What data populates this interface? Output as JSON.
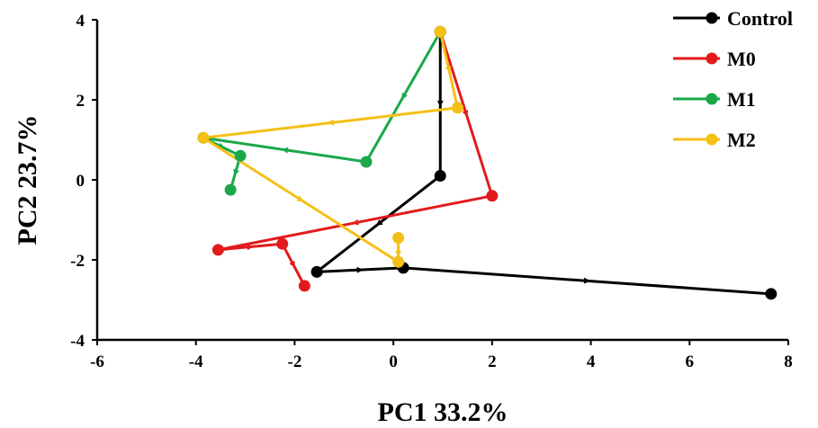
{
  "chart_data": {
    "type": "scatter",
    "xlabel": "PC1 33.2%",
    "ylabel": "PC2 23.7%",
    "xlim": [
      -6,
      8
    ],
    "ylim": [
      -4,
      4
    ],
    "xticks": [
      -6,
      -4,
      -2,
      0,
      2,
      4,
      6,
      8
    ],
    "yticks": [
      -4,
      -2,
      0,
      2,
      4
    ],
    "x_tick_labels": [
      "-6",
      "-4",
      "-2",
      "0",
      "2",
      "4",
      "6",
      "8"
    ],
    "y_tick_labels": [
      "-4",
      "-2",
      "0",
      "2",
      "4"
    ],
    "grid": false,
    "legend_position": "top-right",
    "series": [
      {
        "name": "Control",
        "color": "#000000",
        "x": [
          0.95,
          0.95,
          -1.55,
          0.2,
          7.65
        ],
        "y": [
          3.7,
          0.1,
          -2.3,
          -2.2,
          -2.85
        ]
      },
      {
        "name": "M0",
        "color": "#e31a1c",
        "x": [
          0.95,
          2.0,
          -3.55,
          -2.25,
          -1.8
        ],
        "y": [
          3.7,
          -0.4,
          -1.75,
          -1.6,
          -2.65
        ]
      },
      {
        "name": "M1",
        "color": "#1aa84b",
        "x": [
          0.95,
          -0.55,
          -3.85,
          -3.1,
          -3.3
        ],
        "y": [
          3.7,
          0.45,
          1.05,
          0.6,
          -0.25
        ]
      },
      {
        "name": "M2",
        "color": "#f5c016",
        "x": [
          0.95,
          1.3,
          -3.85,
          0.1,
          0.1
        ],
        "y": [
          3.7,
          1.8,
          1.05,
          -2.05,
          -1.45
        ]
      }
    ]
  }
}
